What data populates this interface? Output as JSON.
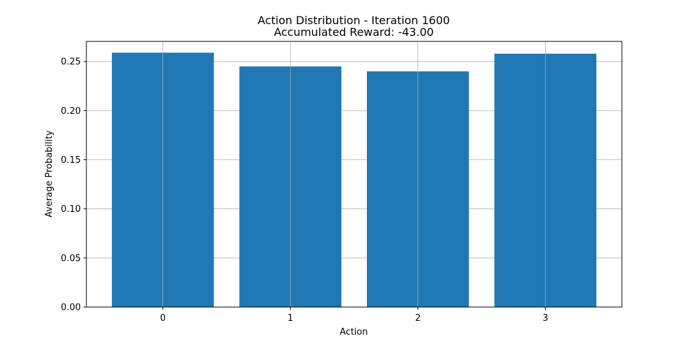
{
  "chart_data": {
    "type": "bar",
    "title": "Action Distribution - Iteration 1600",
    "subtitle": "Accumulated Reward: -43.00",
    "xlabel": "Action",
    "ylabel": "Average Probability",
    "categories": [
      "0",
      "1",
      "2",
      "3"
    ],
    "values": [
      0.259,
      0.245,
      0.24,
      0.258
    ],
    "ylim": [
      0,
      0.2705
    ],
    "yticks": [
      "0.00",
      "0.05",
      "0.10",
      "0.15",
      "0.20",
      "0.25"
    ],
    "grid": true,
    "bar_color": "#1f77b4",
    "grid_color": "#b0b0b0"
  }
}
